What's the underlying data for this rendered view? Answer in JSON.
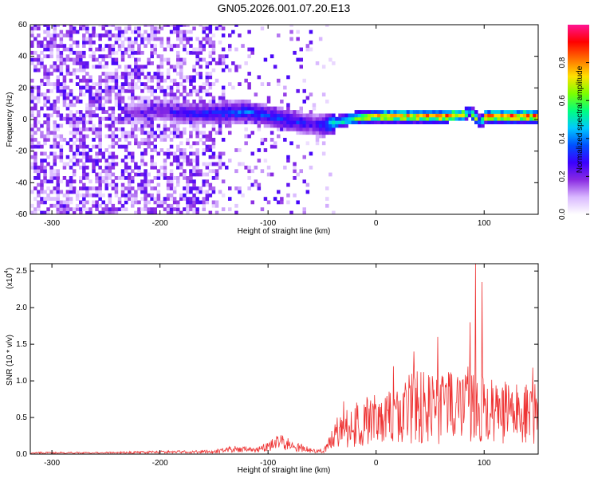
{
  "title": "GN05.2026.001.07.20.E13",
  "chart_data": [
    {
      "type": "heatmap",
      "name": "spectrogram",
      "xlabel": "Height of straight line (km)",
      "ylabel": "Frequency (Hz)",
      "xlim": [
        -320,
        150
      ],
      "ylim": [
        -60,
        60
      ],
      "xticks": [
        -300,
        -200,
        -100,
        0,
        100
      ],
      "xtick_labels": [
        "-300",
        "-200",
        "-100",
        "0",
        "100"
      ],
      "yticks": [
        -60,
        -40,
        -20,
        0,
        20,
        40,
        60
      ],
      "ytick_labels": [
        "-60",
        "-40",
        "-20",
        "0",
        "20",
        "40",
        "60"
      ],
      "colorbar": {
        "label": "Normalized spectral amplitude",
        "range": [
          0,
          1
        ],
        "ticks": [
          0.0,
          0.2,
          0.4,
          0.6,
          0.8
        ],
        "tick_labels": [
          "0.0",
          "0.2",
          "0.4",
          "0.6",
          "0.8"
        ],
        "colors": [
          "#ffffff",
          "#d9b8ff",
          "#8a2be2",
          "#3b00ff",
          "#0050ff",
          "#00c8ff",
          "#00ff80",
          "#7cff00",
          "#ffe000",
          "#ff7000",
          "#ff0000",
          "#ff1493"
        ]
      },
      "ridge": {
        "km": [
          -230,
          -200,
          -180,
          -150,
          -120,
          -100,
          -80,
          -60,
          -50,
          -40,
          -20,
          0,
          20,
          40,
          60,
          80,
          85,
          90,
          95,
          100,
          120,
          150
        ],
        "freq_hz": [
          3,
          5,
          3,
          3,
          4,
          1,
          -2,
          -4,
          -5,
          -3,
          0,
          1,
          1,
          1,
          1,
          2,
          4,
          1,
          -3,
          1,
          1,
          1
        ],
        "amplitude": [
          0.2,
          0.25,
          0.3,
          0.35,
          0.4,
          0.35,
          0.35,
          0.3,
          0.35,
          0.6,
          0.7,
          0.85,
          0.9,
          0.9,
          0.9,
          0.85,
          0.5,
          0.8,
          0.5,
          0.9,
          0.95,
          0.95
        ]
      }
    },
    {
      "type": "line",
      "name": "snr",
      "xlabel": "Height of straight line (km)",
      "ylabel": "SNR (10 * v/v)",
      "yscale_label": "(x10",
      "yscale_exp": "4",
      "xlim": [
        -320,
        150
      ],
      "ylim": [
        0,
        2.6
      ],
      "xticks": [
        -300,
        -200,
        -100,
        0,
        100
      ],
      "xtick_labels": [
        "-300",
        "-200",
        "-100",
        "0",
        "100"
      ],
      "yticks": [
        0,
        0.5,
        1.0,
        1.5,
        2.0,
        2.5
      ],
      "ytick_labels": [
        "0.0",
        "0.5",
        "1.0",
        "1.5",
        "2.0",
        "2.5"
      ],
      "color": "#ee3333",
      "series": [
        {
          "name": "SNR envelope",
          "x": [
            -320,
            -250,
            -200,
            -150,
            -140,
            -130,
            -120,
            -110,
            -100,
            -90,
            -80,
            -70,
            -60,
            -50,
            -45,
            -40,
            -35,
            -30,
            -20,
            -10,
            0,
            10,
            20,
            30,
            40,
            50,
            60,
            70,
            80,
            85,
            90,
            95,
            100,
            110,
            120,
            130,
            140,
            150
          ],
          "y": [
            0.02,
            0.02,
            0.03,
            0.04,
            0.06,
            0.08,
            0.07,
            0.06,
            0.12,
            0.18,
            0.15,
            0.1,
            0.05,
            0.05,
            0.1,
            0.3,
            0.45,
            0.5,
            0.6,
            0.65,
            0.7,
            0.75,
            0.85,
            0.9,
            0.95,
            0.95,
            0.9,
            0.95,
            1.0,
            1.1,
            1.05,
            0.95,
            0.9,
            0.85,
            0.85,
            0.8,
            0.8,
            0.85
          ]
        }
      ],
      "peaks": [
        {
          "x": 92,
          "y": 2.6
        },
        {
          "x": 98,
          "y": 2.35
        },
        {
          "x": 57,
          "y": 1.6
        },
        {
          "x": 87,
          "y": 1.8
        },
        {
          "x": 35,
          "y": 1.4
        },
        {
          "x": 16,
          "y": 1.2
        },
        {
          "x": -30,
          "y": 0.72
        },
        {
          "x": 145,
          "y": 1.18
        }
      ]
    }
  ]
}
